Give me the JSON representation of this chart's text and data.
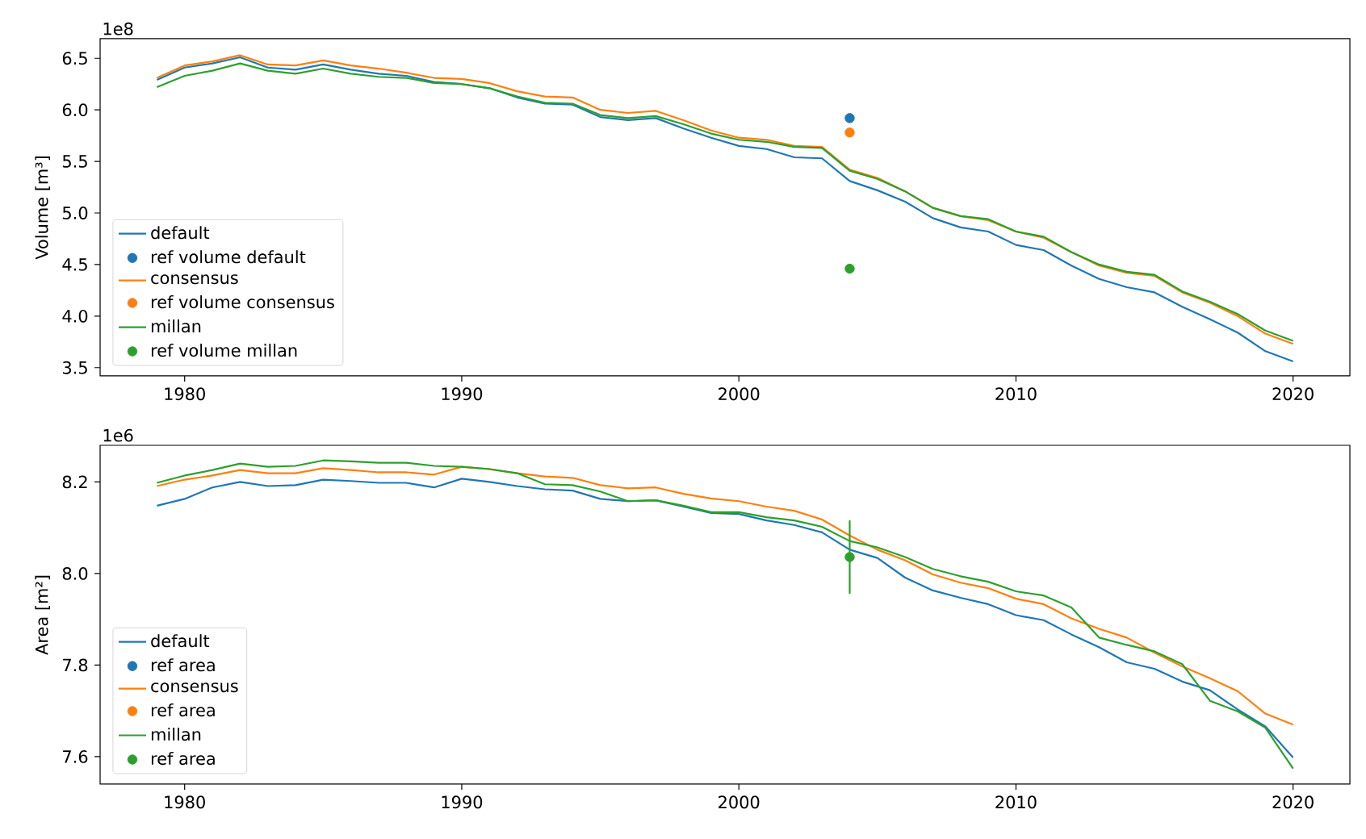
{
  "chart_data": [
    {
      "type": "line",
      "ylabel": "Volume [m³]",
      "annotations": [
        "1e8"
      ],
      "xlim": [
        1976.95,
        2022.05
      ],
      "ylim": [
        3.42,
        6.69
      ],
      "xticks": [
        1980,
        1990,
        2000,
        2010,
        2020
      ],
      "yticks": [
        3.5,
        {
          "value": 4,
          "label": "4.0"
        },
        4.5,
        {
          "value": 5,
          "label": "5.0"
        },
        5.5,
        {
          "value": 6,
          "label": "6.0"
        },
        6.5
      ],
      "legend": "bottom left",
      "series": [
        {
          "name": "default",
          "color": "#1f77b4",
          "x": [
            1979,
            1980,
            1981,
            1982,
            1983,
            1984,
            1985,
            1986,
            1987,
            1988,
            1989,
            1990,
            1991,
            1992,
            1993,
            1994,
            1995,
            1996,
            1997,
            1998,
            1999,
            2000,
            2001,
            2002,
            2003,
            2004,
            2005,
            2006,
            2007,
            2008,
            2009,
            2010,
            2011,
            2012,
            2013,
            2014,
            2015,
            2016,
            2017,
            2018,
            2019,
            2020
          ],
          "values": [
            6.29,
            6.41,
            6.45,
            6.51,
            6.41,
            6.39,
            6.44,
            6.39,
            6.35,
            6.33,
            6.27,
            6.25,
            6.21,
            6.12,
            6.06,
            6.05,
            5.93,
            5.9,
            5.92,
            5.82,
            5.73,
            5.65,
            5.62,
            5.54,
            5.53,
            5.31,
            5.22,
            5.11,
            4.95,
            4.86,
            4.82,
            4.69,
            4.64,
            4.49,
            4.36,
            4.28,
            4.23,
            4.09,
            3.97,
            3.84,
            3.66,
            3.56
          ]
        },
        {
          "name": "ref volume default",
          "type": "scatter",
          "color": "#1f77b4",
          "x": [
            2004
          ],
          "values": [
            5.92
          ]
        },
        {
          "name": "consensus",
          "color": "#ff7f0e",
          "x": [
            1979,
            1980,
            1981,
            1982,
            1983,
            1984,
            1985,
            1986,
            1987,
            1988,
            1989,
            1990,
            1991,
            1992,
            1993,
            1994,
            1995,
            1996,
            1997,
            1998,
            1999,
            2000,
            2001,
            2002,
            2003,
            2004,
            2005,
            2006,
            2007,
            2008,
            2009,
            2010,
            2011,
            2012,
            2013,
            2014,
            2015,
            2016,
            2017,
            2018,
            2019,
            2020
          ],
          "values": [
            6.31,
            6.43,
            6.47,
            6.53,
            6.44,
            6.43,
            6.48,
            6.43,
            6.4,
            6.36,
            6.31,
            6.3,
            6.26,
            6.18,
            6.13,
            6.12,
            6.0,
            5.97,
            5.99,
            5.9,
            5.8,
            5.73,
            5.71,
            5.65,
            5.64,
            5.42,
            5.34,
            5.21,
            5.05,
            4.97,
            4.93,
            4.82,
            4.76,
            4.62,
            4.49,
            4.42,
            4.39,
            4.23,
            4.13,
            4.0,
            3.83,
            3.73
          ]
        },
        {
          "name": "ref volume consensus",
          "type": "scatter",
          "color": "#ff7f0e",
          "x": [
            2004
          ],
          "values": [
            5.78
          ]
        },
        {
          "name": "millan",
          "color": "#2ca02c",
          "x": [
            1979,
            1980,
            1981,
            1982,
            1983,
            1984,
            1985,
            1986,
            1987,
            1988,
            1989,
            1990,
            1991,
            1992,
            1993,
            1994,
            1995,
            1996,
            1997,
            1998,
            1999,
            2000,
            2001,
            2002,
            2003,
            2004,
            2005,
            2006,
            2007,
            2008,
            2009,
            2010,
            2011,
            2012,
            2013,
            2014,
            2015,
            2016,
            2017,
            2018,
            2019,
            2020
          ],
          "values": [
            6.22,
            6.33,
            6.38,
            6.45,
            6.38,
            6.35,
            6.4,
            6.35,
            6.32,
            6.31,
            6.26,
            6.25,
            6.21,
            6.13,
            6.07,
            6.06,
            5.95,
            5.92,
            5.94,
            5.86,
            5.77,
            5.71,
            5.69,
            5.64,
            5.63,
            5.41,
            5.33,
            5.21,
            5.05,
            4.97,
            4.94,
            4.82,
            4.77,
            4.62,
            4.5,
            4.43,
            4.4,
            4.24,
            4.14,
            4.02,
            3.86,
            3.76
          ]
        },
        {
          "name": "ref volume millan",
          "type": "scatter",
          "color": "#2ca02c",
          "x": [
            2004
          ],
          "values": [
            4.46
          ]
        }
      ]
    },
    {
      "type": "line",
      "ylabel": "Area [m²]",
      "annotations": [
        "1e6"
      ],
      "xlim": [
        1976.95,
        2022.05
      ],
      "ylim": [
        7.54,
        8.28
      ],
      "xticks": [
        1980,
        1990,
        2000,
        2010,
        2020
      ],
      "yticks": [
        7.6,
        7.8,
        {
          "value": 8,
          "label": "8.0"
        },
        8.2
      ],
      "legend": "bottom left",
      "series": [
        {
          "name": "default",
          "color": "#1f77b4",
          "x": [
            1979,
            1980,
            1981,
            1982,
            1983,
            1984,
            1985,
            1986,
            1987,
            1988,
            1989,
            1990,
            1991,
            1992,
            1993,
            1994,
            1995,
            1996,
            1997,
            1998,
            1999,
            2000,
            2001,
            2002,
            2003,
            2004,
            2005,
            2006,
            2007,
            2008,
            2009,
            2010,
            2011,
            2012,
            2013,
            2014,
            2015,
            2016,
            2017,
            2018,
            2019,
            2020
          ],
          "values": [
            8.148,
            8.163,
            8.188,
            8.2,
            8.191,
            8.193,
            8.205,
            8.202,
            8.198,
            8.198,
            8.188,
            8.207,
            8.2,
            8.191,
            8.184,
            8.181,
            8.163,
            8.158,
            8.16,
            8.146,
            8.132,
            8.13,
            8.116,
            8.106,
            8.09,
            8.052,
            8.034,
            7.991,
            7.963,
            7.947,
            7.933,
            7.909,
            7.898,
            7.867,
            7.839,
            7.806,
            7.792,
            7.764,
            7.745,
            7.703,
            7.666,
            7.598
          ]
        },
        {
          "name": "ref area",
          "type": "scatter",
          "color": "#1f77b4",
          "values": [
            null
          ]
        },
        {
          "name": "consensus",
          "color": "#ff7f0e",
          "x": [
            1979,
            1980,
            1981,
            1982,
            1983,
            1984,
            1985,
            1986,
            1987,
            1988,
            1989,
            1990,
            1991,
            1992,
            1993,
            1994,
            1995,
            1996,
            1997,
            1998,
            1999,
            2000,
            2001,
            2002,
            2003,
            2004,
            2005,
            2006,
            2007,
            2008,
            2009,
            2010,
            2011,
            2012,
            2013,
            2014,
            2015,
            2016,
            2017,
            2018,
            2019,
            2020
          ],
          "values": [
            8.191,
            8.205,
            8.214,
            8.226,
            8.219,
            8.219,
            8.23,
            8.226,
            8.221,
            8.221,
            8.216,
            8.233,
            8.228,
            8.219,
            8.212,
            8.209,
            8.193,
            8.186,
            8.188,
            8.174,
            8.164,
            8.158,
            8.146,
            8.137,
            8.118,
            8.083,
            8.052,
            8.029,
            7.998,
            7.98,
            7.968,
            7.945,
            7.933,
            7.902,
            7.879,
            7.86,
            7.827,
            7.797,
            7.771,
            7.743,
            7.694,
            7.67
          ]
        },
        {
          "name": "ref area",
          "type": "scatter",
          "color": "#ff7f0e",
          "values": [
            null
          ]
        },
        {
          "name": "millan",
          "color": "#2ca02c",
          "x": [
            1979,
            1980,
            1981,
            1982,
            1983,
            1984,
            1985,
            1986,
            1987,
            1988,
            1989,
            1990,
            1991,
            1992,
            1993,
            1994,
            1995,
            1996,
            1997,
            1998,
            1999,
            2000,
            2001,
            2002,
            2003,
            2004,
            2005,
            2006,
            2007,
            2008,
            2009,
            2010,
            2011,
            2012,
            2013,
            2014,
            2015,
            2016,
            2017,
            2018,
            2019,
            2020
          ],
          "values": [
            8.198,
            8.214,
            8.226,
            8.24,
            8.233,
            8.235,
            8.247,
            8.245,
            8.242,
            8.242,
            8.235,
            8.233,
            8.228,
            8.219,
            8.195,
            8.193,
            8.179,
            8.158,
            8.16,
            8.148,
            8.134,
            8.134,
            8.123,
            8.116,
            8.102,
            8.071,
            8.057,
            8.036,
            8.01,
            7.994,
            7.982,
            7.961,
            7.952,
            7.926,
            7.86,
            7.844,
            7.83,
            7.802,
            7.722,
            7.699,
            7.663,
            7.574
          ]
        },
        {
          "name": "ref area",
          "type": "scatter",
          "color": "#2ca02c",
          "x": [
            2004
          ],
          "values": [
            8.036
          ],
          "errors": [
            0.08
          ]
        }
      ]
    }
  ]
}
